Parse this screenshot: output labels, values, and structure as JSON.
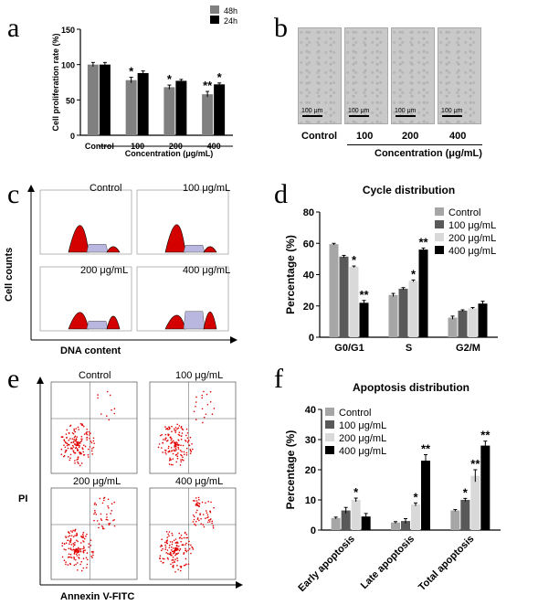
{
  "panels": {
    "a": {
      "letter": "a"
    },
    "b": {
      "letter": "b",
      "images": [
        {
          "scale": "100 μm"
        },
        {
          "scale": "100 μm"
        },
        {
          "scale": "100 μm"
        },
        {
          "scale": "100 μm"
        }
      ],
      "categories": [
        "Control",
        "100",
        "200",
        "400"
      ],
      "xlabel": "Concentration (μg/mL)"
    },
    "c": {
      "letter": "c",
      "hist_titles": [
        "Control",
        "100 μg/mL",
        "200 μg/mL",
        "400 μg/mL"
      ],
      "ylabel": "Cell counts",
      "xlabel": "DNA content"
    },
    "d": {
      "letter": "d"
    },
    "e": {
      "letter": "e",
      "plot_titles": [
        "Control",
        "100 μg/mL",
        "200 μg/mL",
        "400 μg/mL"
      ],
      "ylabel": "PI",
      "xlabel": "Annexin V-FITC"
    },
    "f": {
      "letter": "f"
    }
  },
  "chart_data": [
    {
      "id": "a",
      "type": "bar",
      "ylabel": "Cell proliferation rate (%)",
      "xlabel": "Concentration (μg/mL)",
      "categories": [
        "Control",
        "100",
        "200",
        "400"
      ],
      "ylim": [
        0,
        150
      ],
      "yticks": [
        "0",
        "50",
        "100",
        "150"
      ],
      "series": [
        {
          "name": "48h",
          "color": "#808080",
          "values": [
            100,
            78,
            68,
            58
          ],
          "errors": [
            3,
            4,
            3,
            4
          ],
          "sig": [
            "",
            "*",
            "*",
            "**"
          ]
        },
        {
          "name": "24h",
          "color": "#000000",
          "values": [
            100,
            88,
            77,
            72
          ],
          "errors": [
            3,
            3,
            2,
            2
          ],
          "sig": [
            "",
            "",
            "",
            "*"
          ]
        }
      ],
      "legend_position": "top-right"
    },
    {
      "id": "d",
      "type": "bar",
      "title": "Cycle distribution",
      "ylabel": "Percentage (%)",
      "categories": [
        "G0/G1",
        "S",
        "G2/M"
      ],
      "ylim": [
        0,
        80
      ],
      "yticks": [
        "0",
        "20",
        "40",
        "60",
        "80"
      ],
      "series": [
        {
          "name": "Control",
          "color": "#a6a6a6",
          "values": [
            59.5,
            27,
            12.5
          ],
          "errors": [
            0.5,
            1,
            1
          ],
          "sig": [
            "",
            "",
            ""
          ]
        },
        {
          "name": "100 μg/mL",
          "color": "#595959",
          "values": [
            51.5,
            31,
            17
          ],
          "errors": [
            0.8,
            0.7,
            0.5
          ],
          "sig": [
            "",
            "",
            ""
          ]
        },
        {
          "name": "200 μg/mL",
          "color": "#d9d9d9",
          "values": [
            45,
            36,
            18.5
          ],
          "errors": [
            0.5,
            0.6,
            0.5
          ],
          "sig": [
            "*",
            "*",
            ""
          ]
        },
        {
          "name": "400 μg/mL",
          "color": "#000000",
          "values": [
            22,
            56,
            21.5
          ],
          "errors": [
            1.5,
            1,
            1.5
          ],
          "sig": [
            "**",
            "**",
            ""
          ]
        }
      ],
      "legend_position": "top-right"
    },
    {
      "id": "f",
      "type": "bar",
      "title": "Apoptosis distribution",
      "ylabel": "Percentage (%)",
      "categories": [
        "Early apoptosis",
        "Late apoptosis",
        "Total apoptosis"
      ],
      "ylim": [
        0,
        40
      ],
      "yticks": [
        "0",
        "10",
        "20",
        "30",
        "40"
      ],
      "series": [
        {
          "name": "Control",
          "color": "#a6a6a6",
          "values": [
            4,
            2.5,
            6.5
          ],
          "errors": [
            0.3,
            0.3,
            0.3
          ],
          "sig": [
            "",
            "",
            ""
          ]
        },
        {
          "name": "100 μg/mL",
          "color": "#595959",
          "values": [
            6.5,
            3,
            10
          ],
          "errors": [
            1,
            0.8,
            0.5
          ],
          "sig": [
            "",
            "",
            "*"
          ]
        },
        {
          "name": "200 μg/mL",
          "color": "#d9d9d9",
          "values": [
            10,
            8.5,
            18
          ],
          "errors": [
            0.6,
            0.5,
            2
          ],
          "sig": [
            "*",
            "*",
            "**"
          ]
        },
        {
          "name": "400 μg/mL",
          "color": "#000000",
          "values": [
            4.5,
            23,
            28
          ],
          "errors": [
            1,
            2,
            1.5
          ],
          "sig": [
            "",
            "**",
            "**"
          ]
        }
      ],
      "legend_position": "top-left"
    }
  ]
}
